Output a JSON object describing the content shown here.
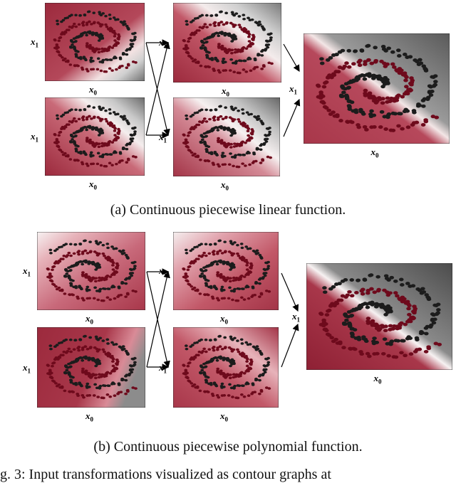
{
  "captions": {
    "a": "(a) Continuous piecewise linear function.",
    "b": "(b) Continuous piecewise polynomial function.",
    "figure": "g. 3: Input transformations visualized as contour graphs at"
  },
  "axis": {
    "x": "x",
    "y": "x",
    "xsub": "0",
    "ysub": "1"
  },
  "colors": {
    "dark_class": "#1c1c1c",
    "red_class": "#6e0a1c",
    "bg_red": "#a8374a",
    "bg_gray": "#6e6e6e"
  }
}
